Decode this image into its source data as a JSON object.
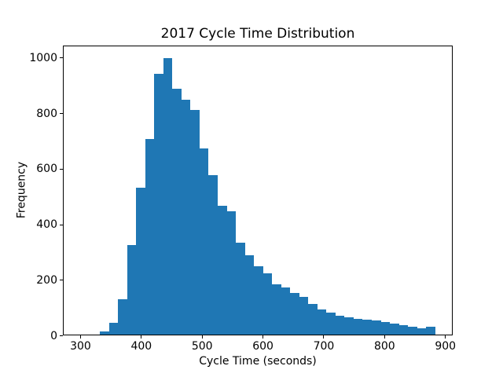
{
  "chart_data": {
    "type": "bar",
    "subtype": "histogram",
    "title": "2017 Cycle Time Distribution",
    "xlabel": "Cycle Time (seconds)",
    "ylabel": "Frequency",
    "xlim": [
      271,
      912
    ],
    "ylim": [
      0,
      1045
    ],
    "x_ticks": [
      300,
      400,
      500,
      600,
      700,
      800,
      900
    ],
    "y_ticks": [
      0,
      200,
      400,
      600,
      800,
      1000
    ],
    "grid": false,
    "legend": null,
    "bar_color": "#1f77b4",
    "bin_start": 330.6,
    "bin_width": 14.9,
    "bin_edges": [
      331,
      345,
      360,
      375,
      390,
      405,
      420,
      435,
      450,
      465,
      479,
      494,
      509,
      524,
      539,
      554,
      569,
      584,
      599,
      613,
      628,
      643,
      658,
      673,
      688,
      703,
      718,
      733,
      748,
      762,
      777,
      792,
      807,
      822,
      837,
      852,
      867,
      882
    ],
    "counts": [
      10,
      43,
      127,
      322,
      530,
      705,
      940,
      995,
      885,
      845,
      810,
      670,
      575,
      465,
      445,
      330,
      285,
      245,
      220,
      180,
      170,
      151,
      135,
      111,
      90,
      78,
      69,
      62,
      57,
      54,
      51,
      45,
      40,
      33,
      28,
      24,
      29
    ]
  }
}
